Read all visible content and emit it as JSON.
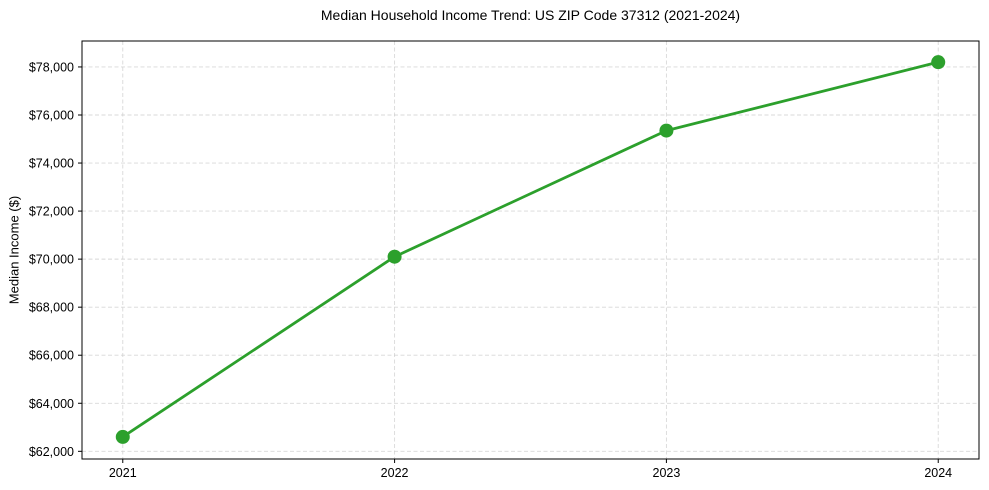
{
  "chart_data": {
    "type": "line",
    "title": "Median Household Income Trend: US ZIP Code 37312 (2021-2024)",
    "xlabel": "",
    "ylabel": "Median Income ($)",
    "categories": [
      "2021",
      "2022",
      "2023",
      "2024"
    ],
    "values": [
      62600,
      70100,
      75350,
      78200
    ],
    "y_ticks": [
      62000,
      64000,
      66000,
      68000,
      70000,
      72000,
      74000,
      76000,
      78000
    ],
    "y_tick_labels": [
      "$62,000",
      "$64,000",
      "$66,000",
      "$68,000",
      "$70,000",
      "$72,000",
      "$74,000",
      "$76,000",
      "$78,000"
    ],
    "ylim": [
      61680,
      79080
    ],
    "grid": true,
    "legend_position": "none",
    "line_color": "#2ca02c",
    "marker": "circle",
    "grid_color": "#cccccc",
    "axis_color": "#000000",
    "background_color": "#ffffff"
  }
}
